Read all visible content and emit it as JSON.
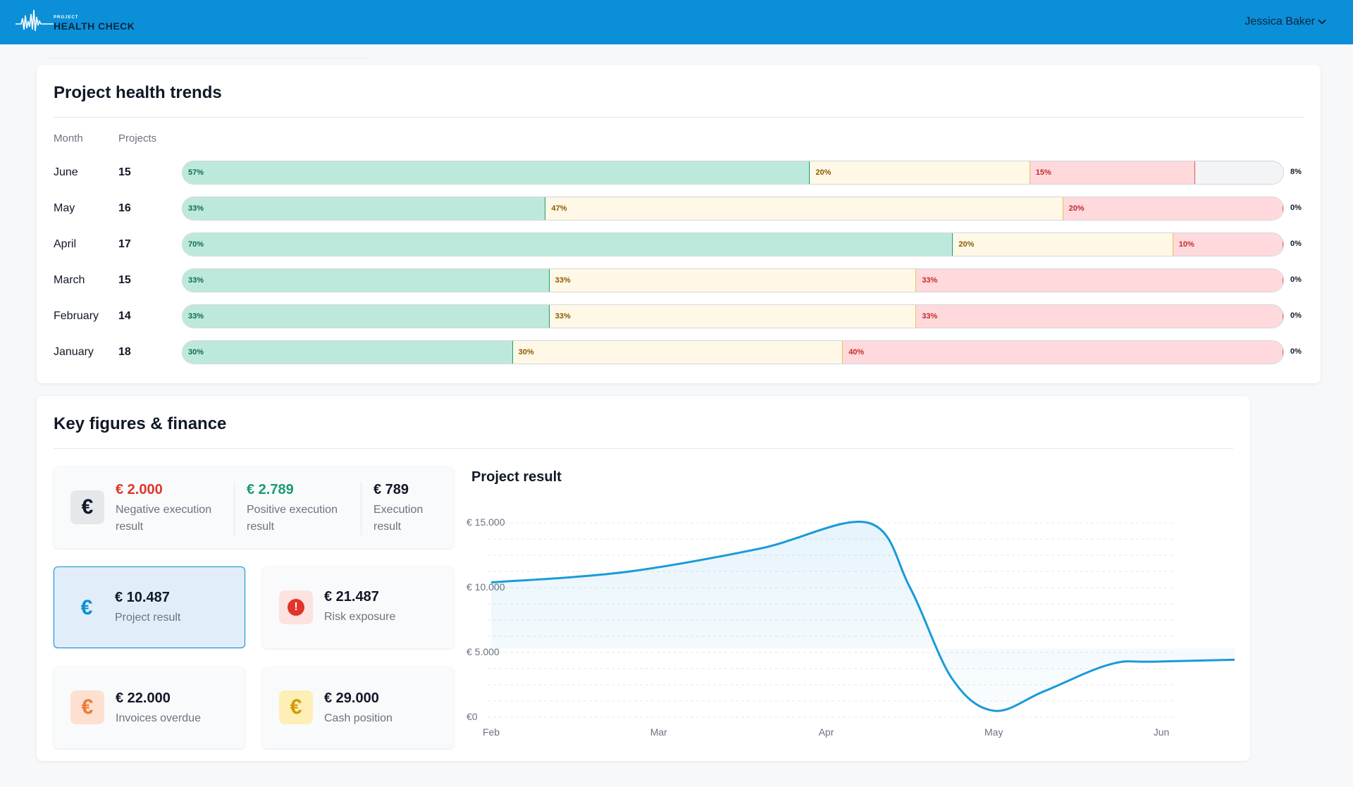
{
  "header": {
    "logo_small": "PROJECT",
    "logo_big": "HEALTH CHECK",
    "user_name": "Jessica Baker"
  },
  "trends": {
    "title": "Project health trends",
    "col_month": "Month",
    "col_projects": "Projects",
    "rows": [
      {
        "month": "June",
        "projects": "15",
        "green": 57,
        "yellow": 20,
        "red": 15,
        "none": 8,
        "green_label": "57%",
        "yellow_label": "20%",
        "red_label": "15%",
        "none_label": "8%"
      },
      {
        "month": "May",
        "projects": "16",
        "green": 33,
        "yellow": 47,
        "red": 20,
        "none": 0,
        "green_label": "33%",
        "yellow_label": "47%",
        "red_label": "20%",
        "none_label": "0%"
      },
      {
        "month": "April",
        "projects": "17",
        "green": 70,
        "yellow": 20,
        "red": 10,
        "none": 0,
        "green_label": "70%",
        "yellow_label": "20%",
        "red_label": "10%",
        "none_label": "0%"
      },
      {
        "month": "March",
        "projects": "15",
        "green": 33,
        "yellow": 33,
        "red": 33,
        "none": 0,
        "green_label": "33%",
        "yellow_label": "33%",
        "red_label": "33%",
        "none_label": "0%"
      },
      {
        "month": "February",
        "projects": "14",
        "green": 33,
        "yellow": 33,
        "red": 33,
        "none": 0,
        "green_label": "33%",
        "yellow_label": "33%",
        "red_label": "33%",
        "none_label": "0%"
      },
      {
        "month": "January",
        "projects": "18",
        "green": 30,
        "yellow": 30,
        "red": 40,
        "none": 0,
        "green_label": "30%",
        "yellow_label": "30%",
        "red_label": "40%",
        "none_label": "0%"
      }
    ]
  },
  "finance": {
    "title": "Key figures & finance",
    "execution": {
      "negative_value": "€ 2.000",
      "negative_label": "Negative execution result",
      "positive_value": "€ 2.789",
      "positive_label": "Positive execution result",
      "exec_value": "€ 789",
      "exec_label": "Execution result"
    },
    "project_result": {
      "value": "€ 10.487",
      "label": "Project result"
    },
    "risk_exposure": {
      "value": "€ 21.487",
      "label": "Risk exposure"
    },
    "invoices_overdue": {
      "value": "€ 22.000",
      "label": "Invoices overdue"
    },
    "cash_position": {
      "value": "€ 29.000",
      "label": "Cash position"
    },
    "icons": {
      "euro": "€",
      "alert": "!"
    },
    "colors": {
      "negative": "#e0352b",
      "positive": "#1a9a72",
      "accent": "#0b8fd8"
    }
  },
  "chart_data": {
    "type": "line",
    "title": "Project result",
    "x": [
      "Feb",
      "Mar",
      "Apr",
      "May",
      "Jun"
    ],
    "y_ticks": [
      "€ 15.000",
      "€ 10.000",
      "€ 5.000",
      "€0"
    ],
    "ylim": [
      0,
      15000
    ],
    "series": [
      {
        "points": [
          [
            0,
            10400
          ],
          [
            0.8,
            11200
          ],
          [
            1.6,
            13000
          ],
          [
            2.25,
            15000
          ],
          [
            2.5,
            10000
          ],
          [
            2.75,
            3000
          ],
          [
            3.0,
            500
          ],
          [
            3.3,
            2000
          ],
          [
            3.7,
            4100
          ],
          [
            4.0,
            4300
          ],
          [
            5.0,
            4600
          ]
        ]
      }
    ]
  }
}
